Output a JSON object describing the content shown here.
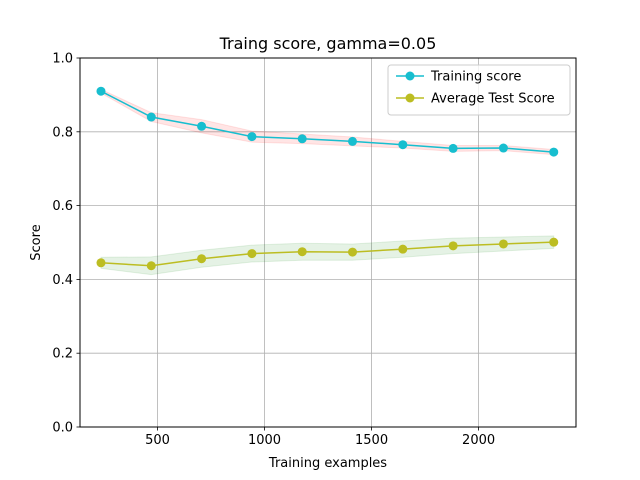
{
  "chart_data": {
    "type": "line",
    "title": "Traing score, gamma=0.05",
    "xlabel": "Training examples",
    "ylabel": "Score",
    "xlim": [
      138,
      2455
    ],
    "ylim": [
      0.0,
      1.0
    ],
    "xticks": [
      500,
      1000,
      1500,
      2000
    ],
    "yticks": [
      0.0,
      0.2,
      0.4,
      0.6,
      0.8,
      1.0
    ],
    "xtick_labels": [
      "500",
      "1000",
      "1500",
      "2000"
    ],
    "ytick_labels": [
      "0.0",
      "0.2",
      "0.4",
      "0.6",
      "0.8",
      "1.0"
    ],
    "grid": true,
    "legend_position": "top-right",
    "x": [
      236,
      471,
      706,
      941,
      1176,
      1411,
      1646,
      1881,
      2116,
      2351
    ],
    "series": [
      {
        "name": "Training score",
        "color": "#17becf",
        "band_color": "#ff0000",
        "values": [
          0.91,
          0.84,
          0.815,
          0.787,
          0.781,
          0.774,
          0.765,
          0.755,
          0.756,
          0.745
        ],
        "band_low": [
          0.905,
          0.828,
          0.797,
          0.772,
          0.768,
          0.762,
          0.756,
          0.747,
          0.749,
          0.738
        ],
        "band_high": [
          0.915,
          0.852,
          0.833,
          0.802,
          0.794,
          0.786,
          0.774,
          0.763,
          0.763,
          0.752
        ]
      },
      {
        "name": "Average Test Score",
        "color": "#bcbd22",
        "band_color": "#008000",
        "values": [
          0.445,
          0.437,
          0.456,
          0.47,
          0.475,
          0.474,
          0.482,
          0.491,
          0.496,
          0.501
        ],
        "band_low": [
          0.43,
          0.413,
          0.433,
          0.447,
          0.452,
          0.452,
          0.46,
          0.47,
          0.477,
          0.484
        ],
        "band_high": [
          0.46,
          0.461,
          0.479,
          0.493,
          0.498,
          0.496,
          0.504,
          0.512,
          0.515,
          0.518
        ]
      }
    ]
  }
}
